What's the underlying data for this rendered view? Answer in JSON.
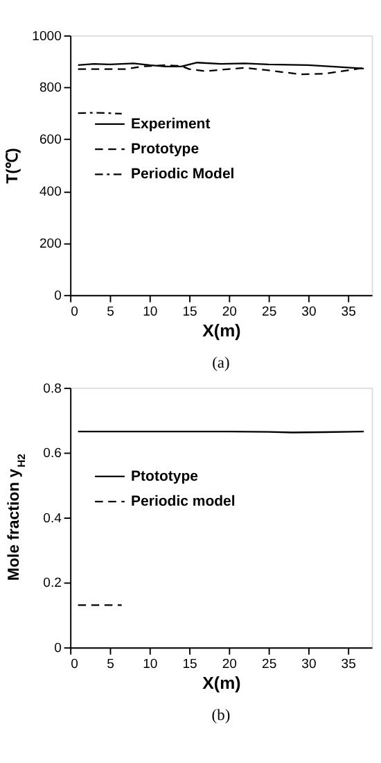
{
  "chart_data": [
    {
      "type": "line",
      "xlabel": "X(m)",
      "ylabel": "T(℃)",
      "xlim": [
        0,
        38
      ],
      "xticks": [
        0,
        5,
        10,
        15,
        20,
        25,
        30,
        35
      ],
      "ylim": [
        0,
        1000
      ],
      "yticks": [
        0,
        200,
        400,
        600,
        800,
        {
          "value": 1000,
          "label": "1000"
        }
      ],
      "grid": false,
      "legend": "top left",
      "annotations": [
        "(a)"
      ],
      "series": [
        {
          "name": "Experiment",
          "color": "#000000",
          "line_style": "solid",
          "x": [
            1,
            3,
            5,
            8,
            10,
            12,
            14,
            16,
            19,
            22,
            25,
            30,
            34,
            37
          ],
          "values": [
            885,
            890,
            888,
            892,
            885,
            880,
            880,
            895,
            890,
            892,
            888,
            885,
            878,
            872
          ]
        },
        {
          "name": "Prototype",
          "color": "#000000",
          "line_style": "dashed",
          "x": [
            1,
            4,
            7,
            9,
            12,
            14,
            15,
            17,
            20,
            22,
            25,
            29,
            32,
            35,
            37
          ],
          "values": [
            870,
            870,
            870,
            880,
            885,
            882,
            870,
            862,
            870,
            875,
            865,
            850,
            852,
            865,
            875
          ]
        },
        {
          "name": "Periodic Model",
          "color": "#000000",
          "line_style": "dashdot",
          "x": [
            1,
            3,
            5,
            6.5
          ],
          "values": [
            700,
            702,
            700,
            698
          ]
        }
      ]
    },
    {
      "type": "line",
      "xlabel": "X(m)",
      "ylabel": "Mole fraction y$_{H2}$",
      "xlim": [
        0,
        38
      ],
      "xticks": [
        0,
        5,
        10,
        15,
        20,
        25,
        30,
        35
      ],
      "ylim": [
        0,
        0.8
      ],
      "yticks": [
        {
          "value": 0,
          "label": "0"
        },
        0.2,
        0.4,
        0.6,
        0.8
      ],
      "grid": false,
      "legend": "top left",
      "annotations": [
        "(b)"
      ],
      "series": [
        {
          "name": "Ptototype",
          "color": "#000000",
          "line_style": "solid",
          "x": [
            1,
            10,
            20,
            25,
            28,
            32,
            37
          ],
          "values": [
            0.665,
            0.665,
            0.665,
            0.664,
            0.662,
            0.663,
            0.665
          ]
        },
        {
          "name": "Periodic model",
          "color": "#000000",
          "line_style": "dashed",
          "x": [
            1,
            6.5
          ],
          "values": [
            0.13,
            0.13
          ]
        }
      ]
    }
  ]
}
